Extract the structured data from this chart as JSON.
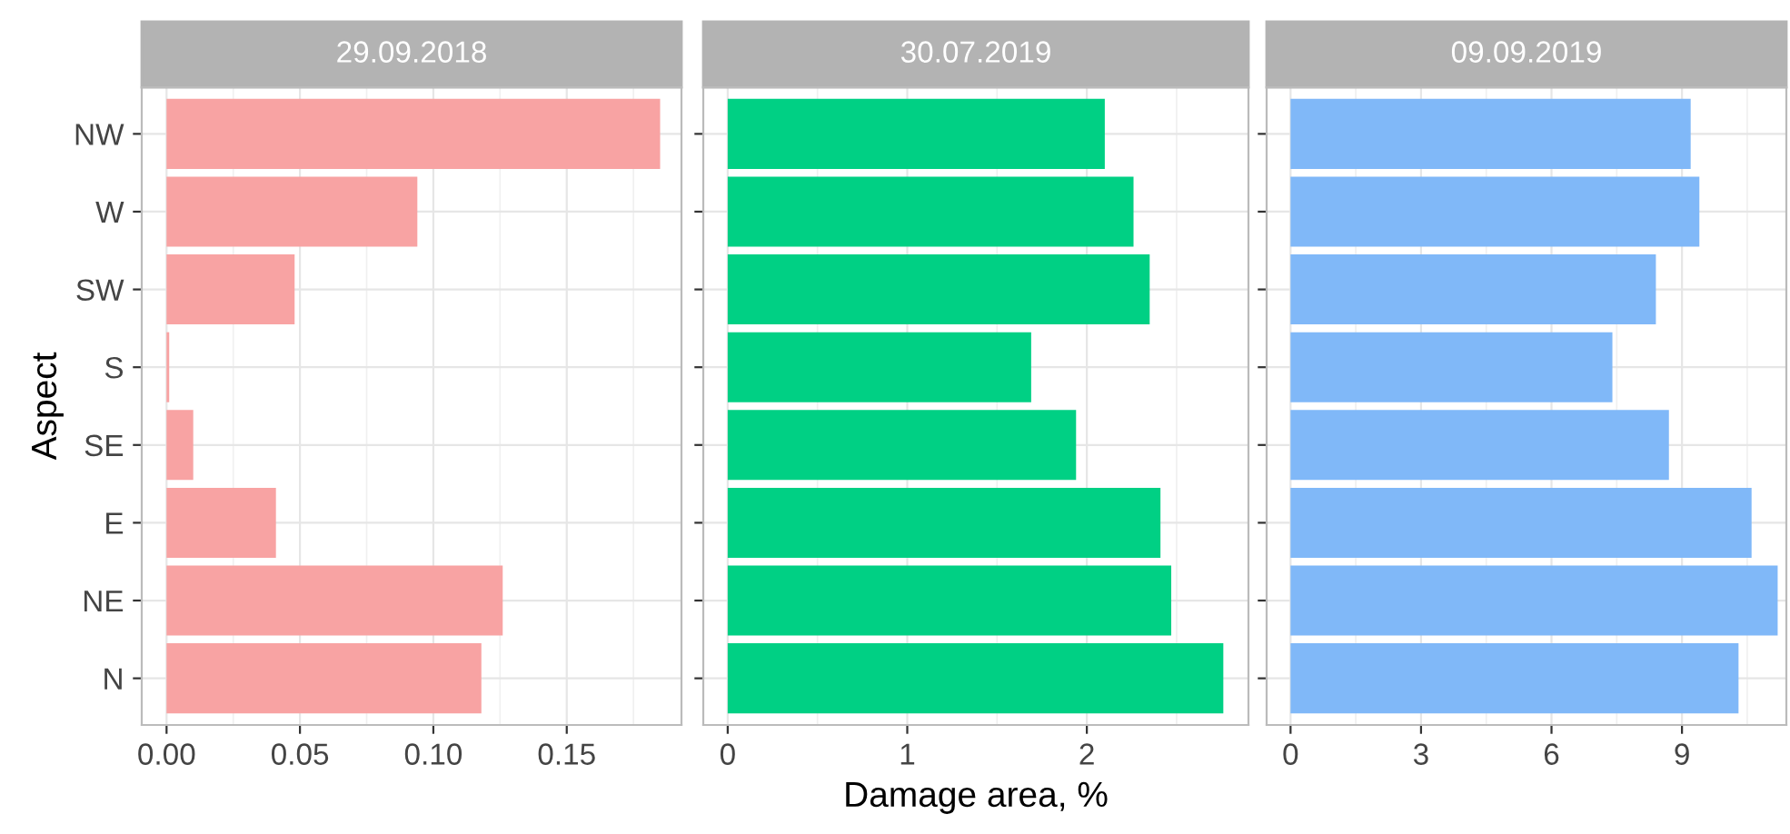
{
  "chart_data": [
    {
      "type": "bar",
      "orientation": "horizontal",
      "title": "29.09.2018",
      "ylabel": "Aspect",
      "categories": [
        "NW",
        "W",
        "SW",
        "S",
        "SE",
        "E",
        "NE",
        "N"
      ],
      "values": [
        0.185,
        0.094,
        0.048,
        0.001,
        0.01,
        0.041,
        0.126,
        0.118
      ],
      "color": "#f8a3a3",
      "xlim": [
        -0.0093,
        0.193
      ],
      "xticks": [
        {
          "value": 0,
          "label": "0.00"
        },
        0.05,
        {
          "value": 0.1,
          "label": "0.10"
        },
        0.15
      ],
      "grid": true
    },
    {
      "type": "bar",
      "orientation": "horizontal",
      "title": "30.07.2019",
      "xlabel": "Damage area, %",
      "categories": [
        null,
        null,
        null,
        null,
        null,
        null,
        null,
        null
      ],
      "values": [
        2.1,
        2.26,
        2.35,
        1.69,
        1.94,
        2.41,
        2.47,
        2.76
      ],
      "color": "#00d084",
      "xlim": [
        -0.136,
        2.9
      ],
      "xticks": [
        0,
        1,
        2
      ],
      "grid": true,
      "tick_labels": "x"
    },
    {
      "type": "bar",
      "orientation": "horizontal",
      "title": "09.09.2019",
      "categories": [
        null,
        null,
        null,
        null,
        null,
        null,
        null,
        null
      ],
      "values": [
        9.2,
        9.4,
        8.4,
        7.4,
        8.7,
        10.6,
        11.2,
        10.3
      ],
      "color": "#80b8f8",
      "xlim": [
        -0.55,
        11.4
      ],
      "xticks": [
        0,
        3,
        6,
        9
      ],
      "grid": true,
      "tick_labels": "x"
    }
  ]
}
